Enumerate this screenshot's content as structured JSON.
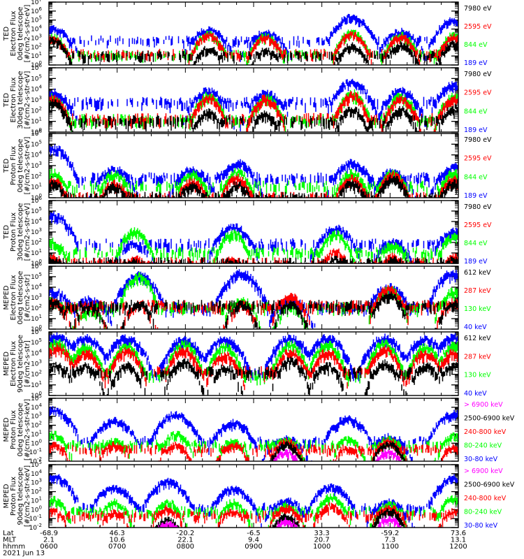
{
  "colors": {
    "black": "#000000",
    "red": "#ff0000",
    "green": "#00ff00",
    "blue": "#0000ff",
    "magenta": "#ff00ff"
  },
  "chart_data": [
    {
      "type": "line",
      "instrument": "TED",
      "ylabel": [
        "TED",
        "Electron Flux",
        "0deg telescope",
        "[#/cm2-s-str-eV]"
      ],
      "ylim": [
        1,
        10000000
      ],
      "yscale": "log",
      "yticks": [
        "10^0",
        "10^1",
        "10^2",
        "10^3",
        "10^4",
        "10^5",
        "10^6",
        "10^7"
      ],
      "legend": [
        {
          "label": "7980 eV",
          "color": "black"
        },
        {
          "label": "2595 eV",
          "color": "red"
        },
        {
          "label": "844 eV",
          "color": "green"
        },
        {
          "label": "189 eV",
          "color": "blue"
        }
      ],
      "bursts": [
        {
          "t": 0.01,
          "peak": [
            3.0,
            3.1,
            3.3,
            4.2
          ]
        },
        {
          "t": 0.39,
          "peak": [
            2.0,
            3.5,
            3.6,
            4.1
          ]
        },
        {
          "t": 0.53,
          "peak": [
            1.8,
            3.3,
            3.4,
            3.8
          ]
        },
        {
          "t": 0.74,
          "peak": [
            2.3,
            3.6,
            3.8,
            5.5
          ]
        },
        {
          "t": 0.86,
          "peak": [
            2.4,
            3.3,
            3.5,
            3.9
          ]
        },
        {
          "t": 0.99,
          "peak": [
            2.5,
            3.3,
            3.5,
            5.2
          ]
        }
      ],
      "background": [
        1.0,
        1.2,
        1.1,
        2.7
      ]
    },
    {
      "type": "line",
      "instrument": "TED",
      "ylabel": [
        "TED",
        "Electron Flux",
        "30deg telescope",
        "[#/cm2-s-str-eV]"
      ],
      "ylim": [
        1,
        1000000
      ],
      "yscale": "log",
      "yticks": [
        "10^0",
        "10^1",
        "10^2",
        "10^3",
        "10^4",
        "10^5",
        "10^6"
      ],
      "legend": [
        {
          "label": "7980 eV",
          "color": "black"
        },
        {
          "label": "2595 eV",
          "color": "red"
        },
        {
          "label": "844 eV",
          "color": "green"
        },
        {
          "label": "189 eV",
          "color": "blue"
        }
      ],
      "bursts": [
        {
          "t": 0.01,
          "peak": [
            3.0,
            3.3,
            3.4,
            3.9
          ]
        },
        {
          "t": 0.39,
          "peak": [
            2.0,
            3.4,
            3.6,
            4.0
          ]
        },
        {
          "t": 0.53,
          "peak": [
            1.8,
            3.3,
            3.4,
            3.8
          ]
        },
        {
          "t": 0.74,
          "peak": [
            2.3,
            3.6,
            3.8,
            4.8
          ]
        },
        {
          "t": 0.86,
          "peak": [
            2.3,
            3.3,
            3.5,
            4.0
          ]
        },
        {
          "t": 0.99,
          "peak": [
            2.4,
            3.3,
            3.5,
            4.6
          ]
        }
      ],
      "background": [
        1.0,
        1.2,
        1.1,
        2.7
      ]
    },
    {
      "type": "line",
      "instrument": "TED",
      "ylabel": [
        "TED",
        "Proton Flux",
        "0deg telescope",
        "[#/cm2-s-str-eV]"
      ],
      "ylim": [
        1,
        1000000
      ],
      "yscale": "log",
      "yticks": [
        "10^0",
        "10^1",
        "10^2",
        "10^3",
        "10^4",
        "10^5",
        "10^6"
      ],
      "legend": [
        {
          "label": "7980 eV",
          "color": "black"
        },
        {
          "label": "2595 eV",
          "color": "red"
        },
        {
          "label": "844 eV",
          "color": "green"
        },
        {
          "label": "189 eV",
          "color": "blue"
        }
      ],
      "bursts": [
        {
          "t": 0.01,
          "peak": [
            1.5,
            1.8,
            2.5,
            4.8
          ]
        },
        {
          "t": 0.16,
          "peak": [
            1.2,
            1.5,
            2.4,
            2.8
          ]
        },
        {
          "t": 0.35,
          "peak": [
            1.3,
            1.7,
            2.4,
            2.8
          ]
        },
        {
          "t": 0.46,
          "peak": [
            1.4,
            2.0,
            2.6,
            3.4
          ]
        },
        {
          "t": 0.74,
          "peak": [
            1.5,
            2.0,
            2.5,
            3.4
          ]
        },
        {
          "t": 0.84,
          "peak": [
            2.0,
            2.3,
            2.5,
            2.6
          ]
        },
        {
          "t": 0.99,
          "peak": [
            1.6,
            2.0,
            2.5,
            3.0
          ]
        }
      ],
      "background": [
        0,
        0,
        1.0,
        1.8
      ]
    },
    {
      "type": "line",
      "instrument": "TED",
      "ylabel": [
        "TED",
        "Proton Flux",
        "30deg telescope",
        "[#/cm2-s-str-eV]"
      ],
      "ylim": [
        1,
        1000000
      ],
      "yscale": "log",
      "yticks": [
        "10^0",
        "10^1",
        "10^2",
        "10^3",
        "10^4",
        "10^5",
        "10^6"
      ],
      "legend": [
        {
          "label": "7980 eV",
          "color": "black"
        },
        {
          "label": "2595 eV",
          "color": "red"
        },
        {
          "label": "844 eV",
          "color": "green"
        },
        {
          "label": "189 eV",
          "color": "blue"
        }
      ],
      "bursts": [
        {
          "t": 0.01,
          "peak": [
            0.5,
            0.8,
            2.2,
            4.8
          ]
        },
        {
          "t": 0.21,
          "peak": [
            0.3,
            0.6,
            3.3,
            2.0
          ]
        },
        {
          "t": 0.45,
          "peak": [
            0.3,
            0.6,
            3.1,
            3.7
          ]
        },
        {
          "t": 0.7,
          "peak": [
            0.5,
            1.3,
            3.0,
            3.5
          ]
        },
        {
          "t": 0.84,
          "peak": [
            0.5,
            0.8,
            2.0,
            2.2
          ]
        },
        {
          "t": 0.99,
          "peak": [
            0.5,
            0.8,
            2.7,
            3.2
          ]
        }
      ],
      "background": [
        0,
        0,
        1.0,
        1.8
      ]
    },
    {
      "type": "line",
      "instrument": "MEPED",
      "ylabel": [
        "MEPED",
        "Electron Flux",
        "0deg telescope",
        "[#/cm2-s-str]"
      ],
      "ylim": [
        1,
        1000000
      ],
      "yscale": "log",
      "yticks": [
        "10^0",
        "10^1",
        "10^2",
        "10^3",
        "10^4",
        "10^5",
        "10^6"
      ],
      "legend": [
        {
          "label": "612 keV",
          "color": "black"
        },
        {
          "label": "287 keV",
          "color": "red"
        },
        {
          "label": "130 keV",
          "color": "green"
        },
        {
          "label": "40 keV",
          "color": "blue"
        }
      ],
      "bursts": [
        {
          "t": 0.01,
          "peak": [
            2.8,
            2.8,
            2.9,
            3.8
          ]
        },
        {
          "t": 0.1,
          "peak": [
            2.4,
            2.4,
            2.0,
            3.0
          ]
        },
        {
          "t": 0.22,
          "peak": [
            2.6,
            2.5,
            5.2,
            5.3
          ]
        },
        {
          "t": 0.47,
          "peak": [
            2.6,
            2.5,
            3.0,
            5.5
          ]
        },
        {
          "t": 0.59,
          "peak": [
            2.6,
            3.3,
            2.2,
            3.0
          ]
        },
        {
          "t": 0.83,
          "peak": [
            3.5,
            4.0,
            4.0,
            4.2
          ]
        },
        {
          "t": 0.99,
          "peak": [
            2.6,
            2.8,
            3.8,
            5.6
          ]
        }
      ],
      "background": [
        2.2,
        2.2,
        2.0,
        2.0
      ]
    },
    {
      "type": "line",
      "instrument": "MEPED",
      "ylabel": [
        "MEPED",
        "Electron Flux",
        "90deg telescope",
        "[#/cm2-s-str]"
      ],
      "ylim": [
        1,
        1000000
      ],
      "yscale": "log",
      "yticks": [
        "10^0",
        "10^1",
        "10^2",
        "10^3",
        "10^4",
        "10^5",
        "10^6"
      ],
      "legend": [
        {
          "label": "612 keV",
          "color": "black"
        },
        {
          "label": "287 keV",
          "color": "red"
        },
        {
          "label": "130 keV",
          "color": "green"
        },
        {
          "label": "40 keV",
          "color": "blue"
        }
      ],
      "bursts": [
        {
          "t": 0.02,
          "peak": [
            3.0,
            4.8,
            5.2,
            5.8
          ]
        },
        {
          "t": 0.09,
          "peak": [
            3.0,
            4.2,
            4.8,
            5.6
          ]
        },
        {
          "t": 0.19,
          "peak": [
            3.0,
            4.4,
            4.9,
            5.6
          ]
        },
        {
          "t": 0.33,
          "peak": [
            3.4,
            4.5,
            5.0,
            5.4
          ]
        },
        {
          "t": 0.43,
          "peak": [
            2.8,
            4.0,
            4.8,
            5.5
          ]
        },
        {
          "t": 0.59,
          "peak": [
            3.5,
            4.3,
            5.0,
            5.6
          ]
        },
        {
          "t": 0.68,
          "peak": [
            3.0,
            4.3,
            5.0,
            5.6
          ]
        },
        {
          "t": 0.82,
          "peak": [
            3.2,
            4.5,
            5.1,
            5.6
          ]
        },
        {
          "t": 0.92,
          "peak": [
            3.0,
            4.2,
            4.8,
            5.5
          ]
        },
        {
          "t": 0.99,
          "peak": [
            3.0,
            4.3,
            4.9,
            5.7
          ]
        }
      ],
      "background": [
        2.2,
        2.2,
        1.8,
        2.0
      ]
    },
    {
      "type": "line",
      "instrument": "MEPED",
      "ylabel": [
        "MEPED",
        "Proton Flux",
        "0deg telescope",
        "[#/cm2-s-str-keV]"
      ],
      "ylim": [
        0.01,
        100000
      ],
      "yscale": "log",
      "yticks": [
        "10^-2",
        "10^-1",
        "10^0",
        "10^1",
        "10^2",
        "10^3",
        "10^4",
        "10^5"
      ],
      "legend": [
        {
          "label": "> 6900 keV",
          "color": "magenta"
        },
        {
          "label": "2500-6900 keV",
          "color": "black"
        },
        {
          "label": "240-800 keV",
          "color": "red"
        },
        {
          "label": "80-240 keV",
          "color": "green"
        },
        {
          "label": "30-80 keV",
          "color": "blue"
        }
      ],
      "bursts": [
        {
          "t": 0.01,
          "peak": [
            -2,
            -2,
            0.0,
            1.2,
            3.9
          ]
        },
        {
          "t": 0.16,
          "peak": [
            -2,
            -2,
            0,
            0.5,
            2.7
          ]
        },
        {
          "t": 0.31,
          "peak": [
            -2,
            -2,
            0,
            1.2,
            3.4
          ]
        },
        {
          "t": 0.45,
          "peak": [
            -2,
            -2,
            0,
            0.4,
            2.5
          ]
        },
        {
          "t": 0.58,
          "peak": [
            -0.8,
            0,
            0.4,
            0.6,
            0.7
          ]
        },
        {
          "t": 0.83,
          "peak": [
            -0.7,
            0.1,
            0.5,
            0.7,
            0.9
          ]
        },
        {
          "t": 0.73,
          "peak": [
            -2,
            -2,
            -0.5,
            0.6,
            2.9
          ]
        },
        {
          "t": 0.99,
          "peak": [
            -2,
            -2,
            -0.3,
            1.0,
            3.5
          ]
        }
      ],
      "background": [
        -9,
        -9,
        -0.7,
        -0.2,
        0.2
      ]
    },
    {
      "type": "line",
      "instrument": "MEPED",
      "ylabel": [
        "MEPED",
        "Proton Flux",
        "90deg telescope",
        "[#/cm2-s-str-keV]"
      ],
      "ylim": [
        0.01,
        100000
      ],
      "yscale": "log",
      "yticks": [
        "10^-2",
        "10^-1",
        "10^0",
        "10^1",
        "10^2",
        "10^3",
        "10^4",
        "10^5"
      ],
      "legend": [
        {
          "label": "> 6900 keV",
          "color": "magenta"
        },
        {
          "label": "2500-6900 keV",
          "color": "black"
        },
        {
          "label": "240-800 keV",
          "color": "red"
        },
        {
          "label": "80-240 keV",
          "color": "green"
        },
        {
          "label": "30-80 keV",
          "color": "blue"
        }
      ],
      "bursts": [
        {
          "t": 0.01,
          "peak": [
            -2,
            -2,
            0.0,
            1.3,
            3.9
          ]
        },
        {
          "t": 0.16,
          "peak": [
            -2,
            -2,
            -0.2,
            1.0,
            2.7
          ]
        },
        {
          "t": 0.29,
          "peak": [
            -1.3,
            -1,
            0.3,
            1.0,
            3.3
          ]
        },
        {
          "t": 0.45,
          "peak": [
            -2,
            -2,
            0,
            1.0,
            2.5
          ]
        },
        {
          "t": 0.58,
          "peak": [
            -1,
            -0.5,
            0.4,
            0.7,
            1.2
          ]
        },
        {
          "t": 0.69,
          "peak": [
            -2,
            -2,
            0.6,
            1.6,
            2.7
          ]
        },
        {
          "t": 0.83,
          "peak": [
            -0.8,
            0.1,
            0.5,
            0.8,
            1.0
          ]
        },
        {
          "t": 0.99,
          "peak": [
            -2,
            -2,
            0,
            1.5,
            3.7
          ]
        }
      ],
      "background": [
        -9,
        -9,
        -0.7,
        -0.2,
        0.2
      ]
    }
  ],
  "x_axis": {
    "row_labels": [
      "Lat",
      "MLT",
      "hhmm",
      "2021 Jun 13"
    ],
    "ticks": [
      {
        "lat": "-68.9",
        "mlt": "2.1",
        "hhmm": "0600"
      },
      {
        "lat": "46.3",
        "mlt": "10.6",
        "hhmm": "0700"
      },
      {
        "lat": "-20.2",
        "mlt": "22.1",
        "hhmm": "0800"
      },
      {
        "lat": "-6.5",
        "mlt": "9.4",
        "hhmm": "0900"
      },
      {
        "lat": "33.3",
        "mlt": "20.7",
        "hhmm": "1000"
      },
      {
        "lat": "-59.2",
        "mlt": "7.3",
        "hhmm": "1100"
      },
      {
        "lat": "73.6",
        "mlt": "13.1",
        "hhmm": "1200"
      }
    ]
  }
}
